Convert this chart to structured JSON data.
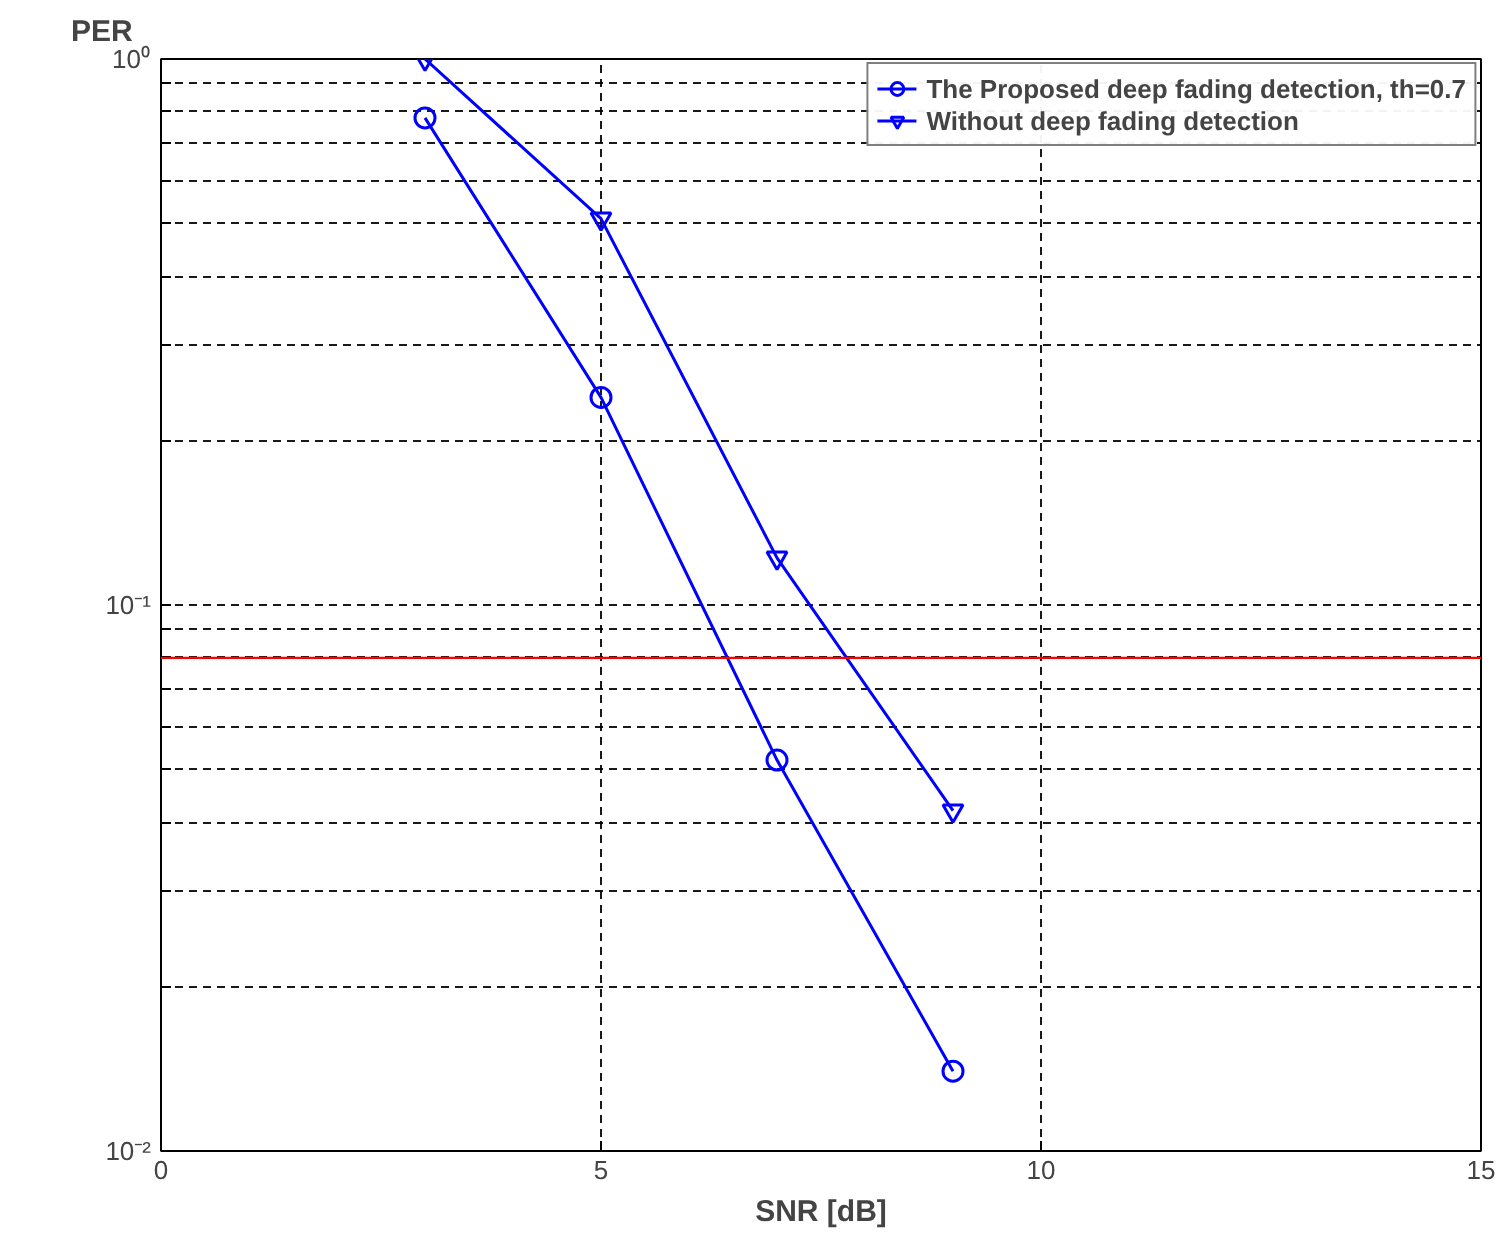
{
  "chart_data": {
    "type": "line",
    "xlabel": "SNR [dB]",
    "ylabel": "PER",
    "log": "y",
    "grid": true,
    "legend": "top right",
    "line_style": "solid",
    "xlim": [
      0,
      15
    ],
    "xticks": [
      0,
      5,
      10,
      15
    ],
    "ylim": [
      0.01,
      1
    ],
    "yticks": [
      {
        "value": 0.01,
        "label": "10⁻²"
      },
      {
        "value": 0.02,
        "label": null
      },
      {
        "value": 0.03,
        "label": null
      },
      {
        "value": 0.04,
        "label": null
      },
      {
        "value": 0.05,
        "label": null
      },
      {
        "value": 0.06,
        "label": null
      },
      {
        "value": 0.07,
        "label": null
      },
      {
        "value": 0.08,
        "label": null
      },
      {
        "value": 0.09,
        "label": null
      },
      {
        "value": 0.1,
        "label": "10⁻¹"
      },
      {
        "value": 0.2,
        "label": null
      },
      {
        "value": 0.3,
        "label": null
      },
      {
        "value": 0.4,
        "label": null
      },
      {
        "value": 0.5,
        "label": null
      },
      {
        "value": 0.6,
        "label": null
      },
      {
        "value": 0.7,
        "label": null
      },
      {
        "value": 0.8,
        "label": null
      },
      {
        "value": 0.9,
        "label": null
      },
      {
        "value": 1,
        "label": "10⁰"
      }
    ],
    "x": [
      3,
      5,
      7,
      9
    ],
    "series": [
      {
        "name": "The Proposed deep fading detection, th=0.7",
        "color": "#0000ff",
        "marker": "circle",
        "values": [
          0.78,
          0.24,
          0.052,
          0.014
        ]
      },
      {
        "name": "Without deep fading detection",
        "color": "#0000ff",
        "marker": "triangle",
        "values": [
          1.0,
          0.51,
          0.122,
          0.042
        ]
      }
    ],
    "ref_lines": [
      {
        "axis": "y",
        "value": 0.08,
        "color": "#ff0000"
      }
    ]
  }
}
